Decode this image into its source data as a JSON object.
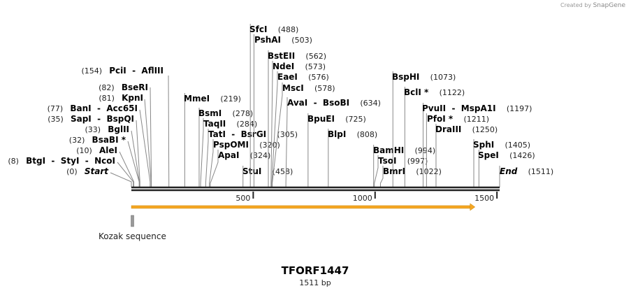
{
  "credit": {
    "prefix": "Created by",
    "brand": "SnapGene"
  },
  "map": {
    "title": "TFORF1447",
    "length_label": "1511 bp",
    "length": 1511
  },
  "axis_ticks": [
    500,
    1000,
    1500
  ],
  "features": [
    {
      "name": "ORF",
      "start": 1,
      "end": 1410,
      "color": "#f5a623",
      "direction": "forward"
    },
    {
      "name": "Kozak sequence",
      "start": 1,
      "end": 10,
      "color": "#999999"
    }
  ],
  "sites": [
    {
      "label": "Start",
      "pos": 0,
      "italic": true
    },
    {
      "label": "BtgI  -  StyI  -  NcoI",
      "pos": 8
    },
    {
      "label": "AleI",
      "pos": 10
    },
    {
      "label": "BsaBI *",
      "pos": 32
    },
    {
      "label": "BglII",
      "pos": 33
    },
    {
      "label": "SapI  -  BspQI",
      "pos": 35
    },
    {
      "label": "BanI  -  Acc65I",
      "pos": 77
    },
    {
      "label": "KpnI",
      "pos": 81
    },
    {
      "label": "BseRI",
      "pos": 82
    },
    {
      "label": "PciI  -  AflIII",
      "pos": 154
    },
    {
      "label": "MmeI",
      "pos": 219
    },
    {
      "label": "BsmI",
      "pos": 278
    },
    {
      "label": "TaqII",
      "pos": 284
    },
    {
      "label": "TatI  -  BsrGI",
      "pos": 305
    },
    {
      "label": "PspOMI",
      "pos": 320
    },
    {
      "label": "ApaI",
      "pos": 324
    },
    {
      "label": "StuI",
      "pos": 458
    },
    {
      "label": "SfcI",
      "pos": 488
    },
    {
      "label": "PshAI",
      "pos": 503
    },
    {
      "label": "BstEII",
      "pos": 562
    },
    {
      "label": "NdeI",
      "pos": 573
    },
    {
      "label": "EaeI",
      "pos": 576
    },
    {
      "label": "MscI",
      "pos": 578
    },
    {
      "label": "AvaI  -  BsoBI",
      "pos": 634
    },
    {
      "label": "BpuEI",
      "pos": 725
    },
    {
      "label": "BlpI",
      "pos": 808
    },
    {
      "label": "BamHI",
      "pos": 994
    },
    {
      "label": "TsoI",
      "pos": 997
    },
    {
      "label": "BmrI",
      "pos": 1022
    },
    {
      "label": "BspHI",
      "pos": 1073
    },
    {
      "label": "BclI *",
      "pos": 1122
    },
    {
      "label": "PvuII  -  MspA1I",
      "pos": 1197
    },
    {
      "label": "PfoI *",
      "pos": 1211
    },
    {
      "label": "DraIII",
      "pos": 1250
    },
    {
      "label": "SphI",
      "pos": 1405
    },
    {
      "label": "SpeI",
      "pos": 1426
    },
    {
      "label": "End",
      "pos": 1511,
      "italic": true
    }
  ]
}
